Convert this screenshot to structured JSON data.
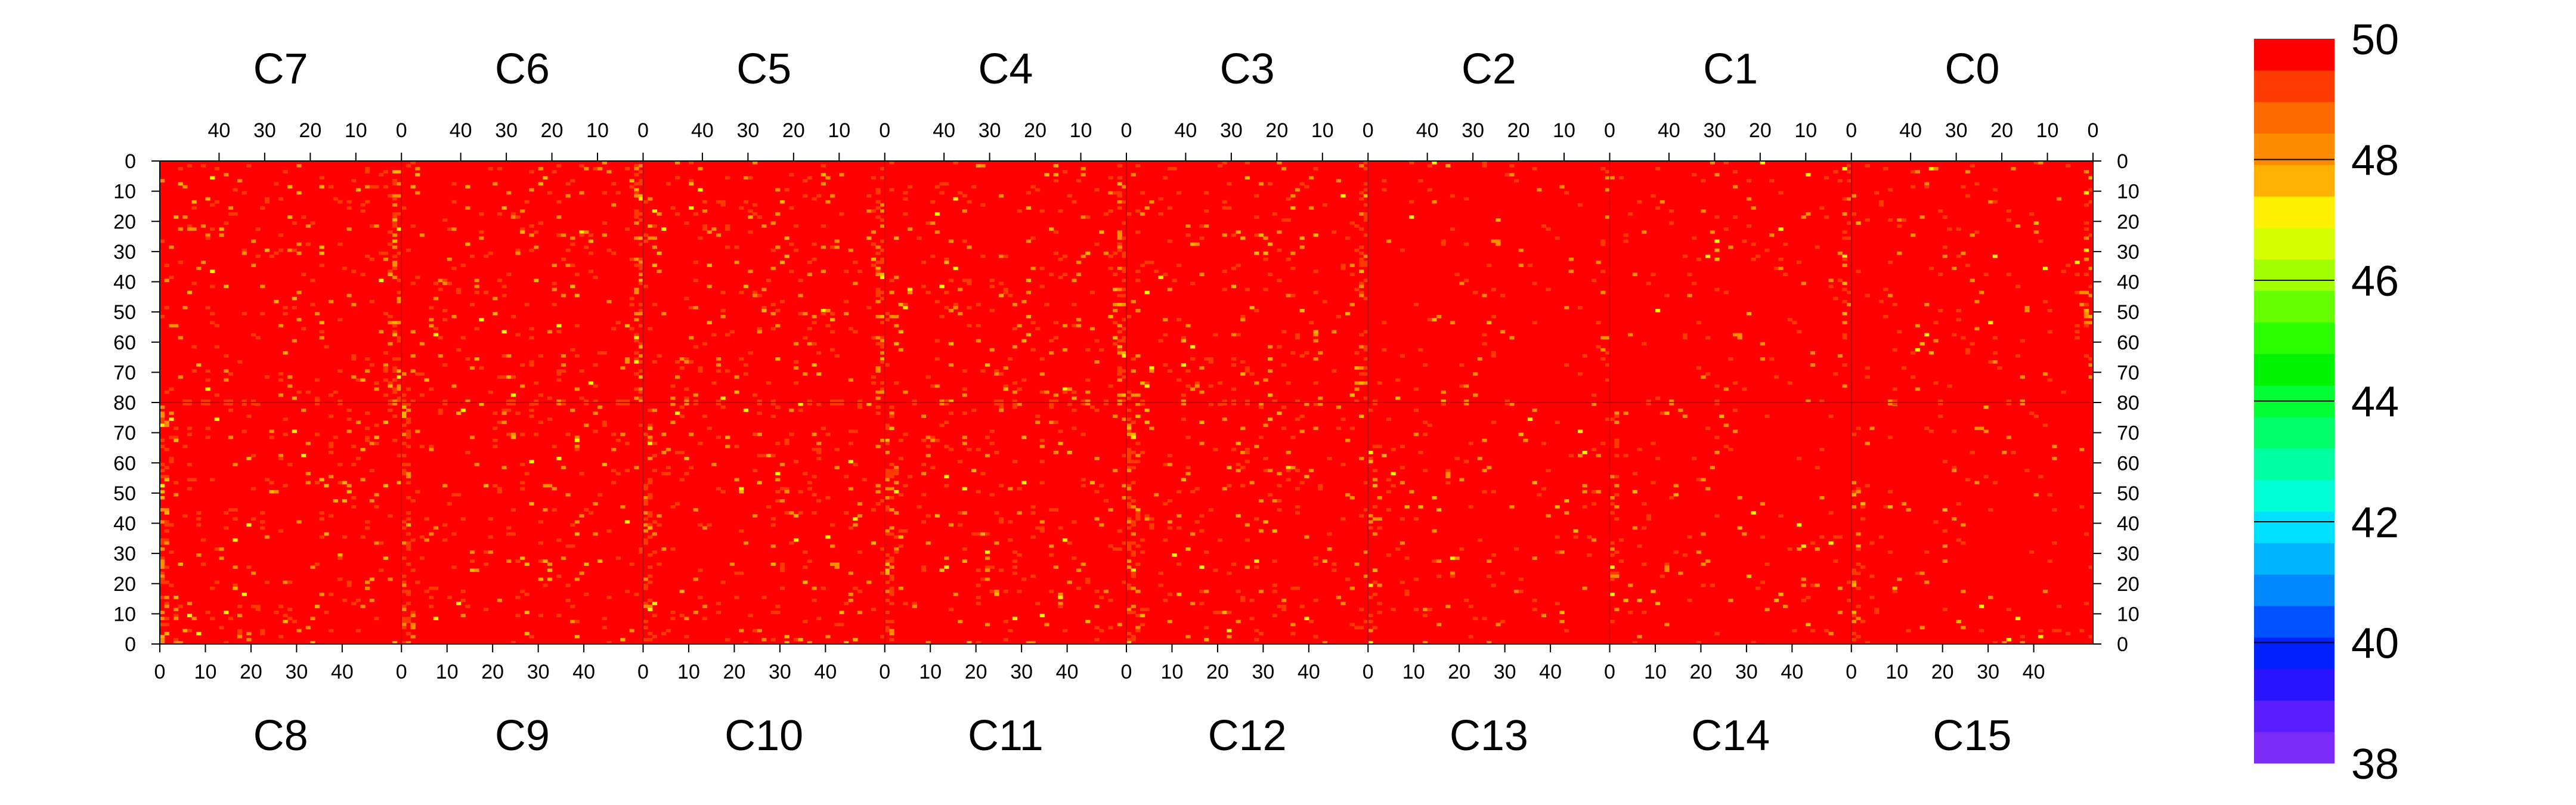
{
  "chart_data": {
    "type": "heatmap",
    "title": "",
    "xlabel": "",
    "ylabel": "",
    "top_panels": [
      "C7",
      "C6",
      "C5",
      "C4",
      "C3",
      "C2",
      "C1",
      "C0"
    ],
    "bottom_panels": [
      "C8",
      "C9",
      "C10",
      "C11",
      "C12",
      "C13",
      "C14",
      "C15"
    ],
    "x_range_per_panel": [
      0,
      53
    ],
    "x_ticks": [
      0,
      10,
      20,
      30,
      40
    ],
    "y_range_per_half": [
      0,
      80
    ],
    "y_ticks": [
      "0",
      "10",
      "20",
      "30",
      "40",
      "50",
      "60",
      "70",
      "80"
    ],
    "top_panels_x_axis": "reversed (50 to 0, left to right)",
    "top_half_y_axis": "increasing downward from 0 to 80",
    "bottom_half_y_axis": "increasing upward from 0 to 80",
    "z_range": [
      38,
      50
    ],
    "colorbar_tick_labels": [
      "50",
      "48",
      "46",
      "44",
      "42",
      "40",
      "38"
    ],
    "colorbar_colors": [
      "#7b2bf9",
      "#5a1dff",
      "#2a14ff",
      "#0022ff",
      "#0051ff",
      "#0088ff",
      "#00b3ff",
      "#00e1ff",
      "#00ffd5",
      "#00ffa0",
      "#00ff6a",
      "#00ff35",
      "#00f400",
      "#2bff00",
      "#66ff00",
      "#a2ff00",
      "#d5ff00",
      "#fff000",
      "#ffb000",
      "#ff8c00",
      "#ff6a00",
      "#ff3a00",
      "#ff0000"
    ],
    "background_color": "#ff0000",
    "value_summary": "Nearly all cells are saturated at the maximum value (50, red); scattered lower-value cells (~46-49, orange/yellow) appear throughout, concentrated in vertical stripes at column 0 of each panel, with occasional horizontal streaks along row 80."
  }
}
